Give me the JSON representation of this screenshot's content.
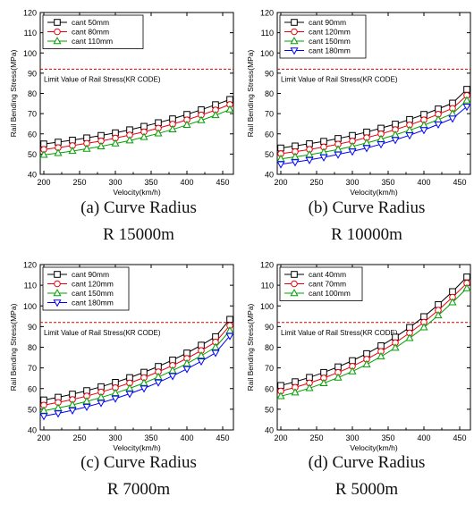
{
  "chart_data": [
    {
      "type": "line",
      "panel_label": "(a)",
      "caption_line1": "(a)  Curve  Radius",
      "caption_line2": "R  15000m",
      "xlabel": "Velocity(km/h)",
      "ylabel": "Rail Bending Stress(MPa)",
      "xlim": [
        195,
        465
      ],
      "ylim": [
        40,
        120
      ],
      "xticks": [
        200,
        250,
        300,
        350,
        400,
        450
      ],
      "yticks": [
        40,
        50,
        60,
        70,
        80,
        90,
        100,
        110,
        120
      ],
      "x": [
        200,
        220,
        240,
        260,
        280,
        300,
        320,
        340,
        360,
        380,
        400,
        420,
        440,
        460
      ],
      "limit_value": 92,
      "limit_label": "Limit Value of Rail Stress(KR CODE)",
      "series": [
        {
          "name": "cant 50mm",
          "color": "#000000",
          "marker": "square",
          "values": [
            55,
            55.9,
            56.9,
            58,
            59.2,
            60.5,
            62,
            63.7,
            65.5,
            67.4,
            69.6,
            71.9,
            74.4,
            77
          ]
        },
        {
          "name": "cant 80mm",
          "color": "#e8000b",
          "marker": "circle",
          "values": [
            52.3,
            53.2,
            54.2,
            55.3,
            56.5,
            57.9,
            59.4,
            61,
            62.8,
            64.8,
            66.9,
            69.3,
            71.8,
            74.5
          ]
        },
        {
          "name": "cant 110mm",
          "color": "#00a000",
          "marker": "triangle-up",
          "values": [
            49.6,
            50.5,
            51.5,
            52.6,
            53.8,
            55.2,
            56.7,
            58.4,
            60.2,
            62.2,
            64.4,
            66.7,
            69.2,
            72
          ]
        }
      ]
    },
    {
      "type": "line",
      "panel_label": "(b)",
      "caption_line1": "(b)  Curve  Radius",
      "caption_line2": "R  10000m",
      "xlabel": "Velocity(km/h)",
      "ylabel": "Rail Bending Stress(MPa)",
      "xlim": [
        195,
        465
      ],
      "ylim": [
        40,
        120
      ],
      "xticks": [
        200,
        250,
        300,
        350,
        400,
        450
      ],
      "yticks": [
        40,
        50,
        60,
        70,
        80,
        90,
        100,
        110,
        120
      ],
      "x": [
        200,
        220,
        240,
        260,
        280,
        300,
        320,
        340,
        360,
        380,
        400,
        420,
        440,
        460
      ],
      "limit_value": 92,
      "limit_label": "Limit Value of Rail Stress(KR CODE)",
      "series": [
        {
          "name": "cant 90mm",
          "color": "#000000",
          "marker": "square",
          "values": [
            53,
            54,
            55.1,
            56.3,
            57.7,
            59.2,
            60.9,
            62.8,
            64.8,
            67.1,
            69.6,
            72.3,
            75.2,
            82
          ]
        },
        {
          "name": "cant 120mm",
          "color": "#e8000b",
          "marker": "circle",
          "values": [
            50.2,
            51.2,
            52.3,
            53.5,
            54.9,
            56.4,
            58.1,
            60,
            62.1,
            64.4,
            66.9,
            69.7,
            72.6,
            79
          ]
        },
        {
          "name": "cant 150mm",
          "color": "#00a000",
          "marker": "triangle-up",
          "values": [
            47.6,
            48.6,
            49.7,
            50.9,
            52.3,
            53.8,
            55.5,
            57.4,
            59.5,
            61.8,
            64.3,
            67,
            70,
            76.5
          ]
        },
        {
          "name": "cant 180mm",
          "color": "#0000ff",
          "marker": "triangle-down",
          "values": [
            45,
            46,
            47.1,
            48.4,
            49.8,
            51.3,
            53,
            54.9,
            57,
            59.3,
            61.9,
            64.7,
            67.6,
            73.5
          ]
        }
      ]
    },
    {
      "type": "line",
      "panel_label": "(c)",
      "caption_line1": "(c)  Curve  Radius",
      "caption_line2": "R  7000m",
      "xlabel": "Velocity(km/h)",
      "ylabel": "Rail Bending Stress(MPa)",
      "xlim": [
        195,
        465
      ],
      "ylim": [
        40,
        120
      ],
      "xticks": [
        200,
        250,
        300,
        350,
        400,
        450
      ],
      "yticks": [
        40,
        50,
        60,
        70,
        80,
        90,
        100,
        110,
        120
      ],
      "x": [
        200,
        220,
        240,
        260,
        280,
        300,
        320,
        340,
        360,
        380,
        400,
        420,
        440,
        460
      ],
      "limit_value": 92,
      "limit_label": "Limit Value of Rail Stress(KR CODE)",
      "series": [
        {
          "name": "cant 90mm",
          "color": "#000000",
          "marker": "square",
          "values": [
            54.5,
            55.8,
            57.3,
            59,
            60.9,
            63,
            65.3,
            67.9,
            70.7,
            73.8,
            77.2,
            81,
            85.1,
            93.5
          ]
        },
        {
          "name": "cant 120mm",
          "color": "#e8000b",
          "marker": "circle",
          "values": [
            52,
            53.3,
            54.7,
            56.4,
            58.3,
            60.4,
            62.7,
            65.3,
            68.1,
            71.2,
            74.6,
            78.4,
            82.5,
            90.5
          ]
        },
        {
          "name": "cant 150mm",
          "color": "#00a000",
          "marker": "triangle-up",
          "values": [
            49.3,
            50.6,
            52.1,
            53.8,
            55.7,
            57.8,
            60.1,
            62.7,
            65.6,
            68.7,
            72.1,
            75.9,
            80,
            88
          ]
        },
        {
          "name": "cant 180mm",
          "color": "#0000ff",
          "marker": "triangle-down",
          "values": [
            46.7,
            48,
            49.5,
            51.2,
            53.1,
            55.2,
            57.5,
            60.1,
            63,
            66.1,
            69.5,
            73.2,
            77.3,
            85.5
          ]
        }
      ]
    },
    {
      "type": "line",
      "panel_label": "(d)",
      "caption_line1": "(d)  Curve  Radius",
      "caption_line2": "R  5000m",
      "xlabel": "Velocity(km/h)",
      "ylabel": "Rail Bending Stress(MPa)",
      "xlim": [
        195,
        465
      ],
      "ylim": [
        40,
        120
      ],
      "xticks": [
        200,
        250,
        300,
        350,
        400,
        450
      ],
      "yticks": [
        40,
        50,
        60,
        70,
        80,
        90,
        100,
        110,
        120
      ],
      "x": [
        200,
        220,
        240,
        260,
        280,
        300,
        320,
        340,
        360,
        380,
        400,
        420,
        440,
        460
      ],
      "limit_value": 92,
      "limit_label": "Limit Value of Rail Stress(KR CODE)",
      "series": [
        {
          "name": "cant 40mm",
          "color": "#000000",
          "marker": "square",
          "values": [
            61.5,
            63.3,
            65.4,
            67.8,
            70.5,
            73.5,
            76.9,
            80.7,
            84.9,
            89.6,
            94.8,
            100.6,
            106.9,
            114
          ]
        },
        {
          "name": "cant 70mm",
          "color": "#e8000b",
          "marker": "circle",
          "values": [
            58.8,
            60.6,
            62.7,
            65.1,
            67.8,
            70.8,
            74.2,
            78,
            82.2,
            86.9,
            92.1,
            97.9,
            104.2,
            111
          ]
        },
        {
          "name": "cant 100mm",
          "color": "#00a000",
          "marker": "triangle-up",
          "values": [
            56.3,
            58.1,
            60.2,
            62.6,
            65.3,
            68.3,
            71.7,
            75.5,
            79.7,
            84.4,
            89.6,
            95.4,
            101.7,
            108.5
          ]
        }
      ]
    }
  ]
}
